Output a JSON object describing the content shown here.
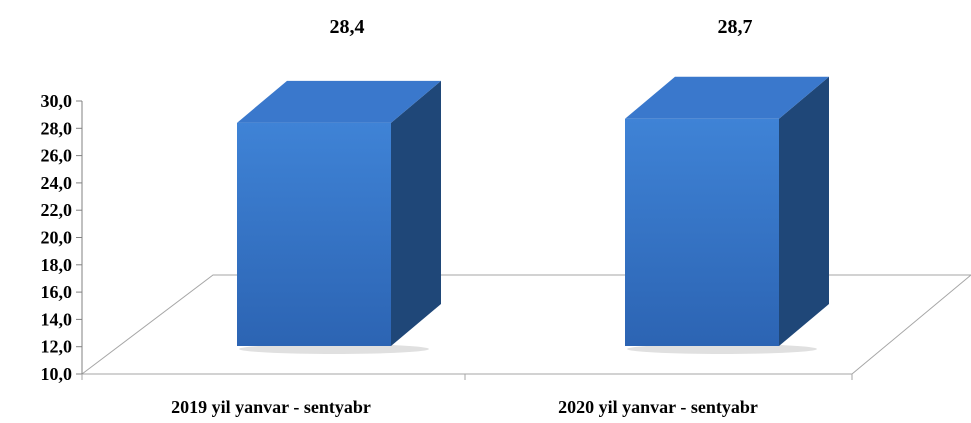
{
  "chart_data": {
    "type": "bar",
    "categories": [
      "2019 yil yanvar - sentyabr",
      "2020 yil yanvar - sentyabr"
    ],
    "values": [
      28.4,
      28.7
    ],
    "data_labels": [
      "28,4",
      "28,7"
    ],
    "ylim": [
      10.0,
      30.0
    ],
    "yticks": [
      "10,0",
      "12,0",
      "14,0",
      "16,0",
      "18,0",
      "20,0",
      "22,0",
      "24,0",
      "26,0",
      "28,0",
      "30,0"
    ],
    "title": "",
    "xlabel": "",
    "ylabel": "",
    "grid": false,
    "legend": false,
    "style": "3d-column"
  },
  "colors": {
    "bar_front_top": "#3f83d6",
    "bar_front_bottom": "#2c64b3",
    "bar_top": "#3a78cc",
    "bar_side": "#1f4778",
    "floor_line": "#a6a6a6",
    "axis_line": "#808080"
  }
}
